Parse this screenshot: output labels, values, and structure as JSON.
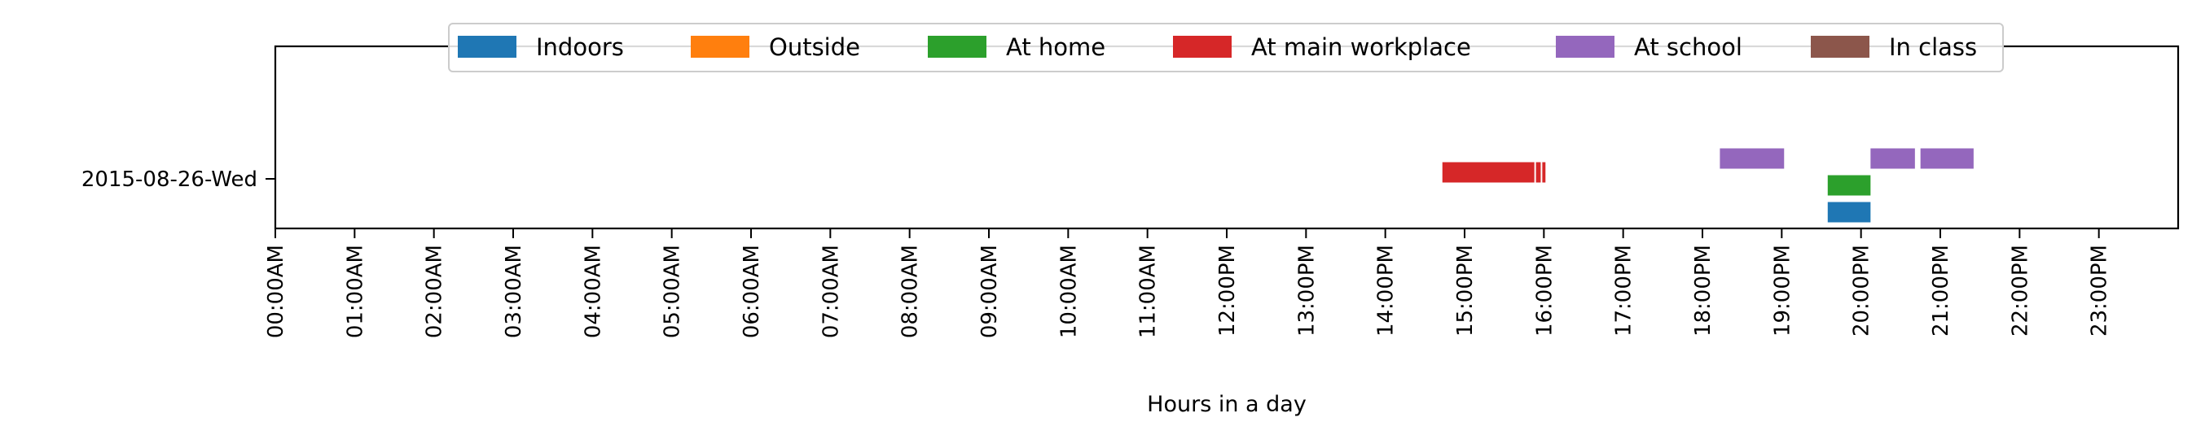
{
  "chart_data": {
    "type": "timeline",
    "title": "",
    "xlabel": "Hours in a day",
    "ylabel": "",
    "xlim": [
      0,
      24
    ],
    "x_ticks": [
      {
        "value": 0,
        "label": "00:00AM"
      },
      {
        "value": 1,
        "label": "01:00AM"
      },
      {
        "value": 2,
        "label": "02:00AM"
      },
      {
        "value": 3,
        "label": "03:00AM"
      },
      {
        "value": 4,
        "label": "04:00AM"
      },
      {
        "value": 5,
        "label": "05:00AM"
      },
      {
        "value": 6,
        "label": "06:00AM"
      },
      {
        "value": 7,
        "label": "07:00AM"
      },
      {
        "value": 8,
        "label": "08:00AM"
      },
      {
        "value": 9,
        "label": "09:00AM"
      },
      {
        "value": 10,
        "label": "10:00AM"
      },
      {
        "value": 11,
        "label": "11:00AM"
      },
      {
        "value": 12,
        "label": "12:00PM"
      },
      {
        "value": 13,
        "label": "13:00PM"
      },
      {
        "value": 14,
        "label": "14:00PM"
      },
      {
        "value": 15,
        "label": "15:00PM"
      },
      {
        "value": 16,
        "label": "16:00PM"
      },
      {
        "value": 17,
        "label": "17:00PM"
      },
      {
        "value": 18,
        "label": "18:00PM"
      },
      {
        "value": 19,
        "label": "19:00PM"
      },
      {
        "value": 20,
        "label": "20:00PM"
      },
      {
        "value": 21,
        "label": "21:00PM"
      },
      {
        "value": 22,
        "label": "22:00PM"
      },
      {
        "value": 23,
        "label": "23:00PM"
      }
    ],
    "y_categories": [
      "2015-08-26-Wed"
    ],
    "legend_position": "top-center",
    "grid": false,
    "series": [
      {
        "name": "Indoors",
        "color": "#1f77b4",
        "intervals": [
          [
            19.58,
            20.12
          ]
        ]
      },
      {
        "name": "Outside",
        "color": "#ff7f0e",
        "intervals": []
      },
      {
        "name": "At home",
        "color": "#2ca02c",
        "intervals": [
          [
            19.58,
            20.12
          ]
        ]
      },
      {
        "name": "At main workplace",
        "color": "#d62728",
        "intervals": [
          [
            14.72,
            15.88
          ],
          [
            15.9,
            15.96
          ],
          [
            15.98,
            16.02
          ]
        ]
      },
      {
        "name": "At school",
        "color": "#9467bd",
        "intervals": [
          [
            18.22,
            19.03
          ],
          [
            20.12,
            20.68
          ],
          [
            20.75,
            21.42
          ]
        ]
      },
      {
        "name": "In class",
        "color": "#8c564b",
        "intervals": []
      }
    ]
  }
}
